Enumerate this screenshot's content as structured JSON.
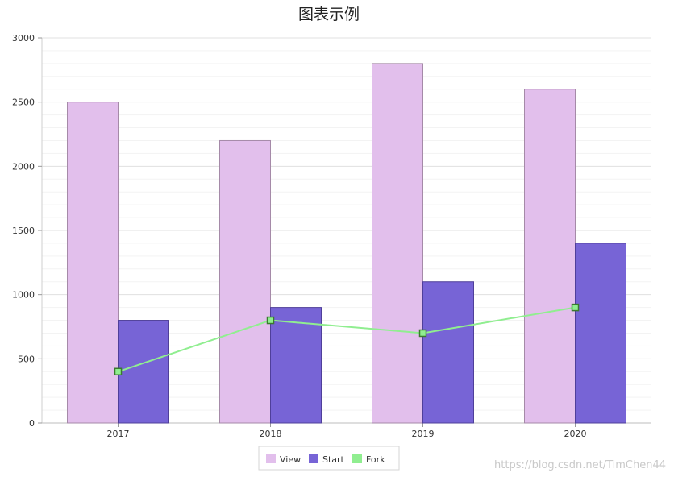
{
  "chart_data": {
    "type": "bar",
    "title": "图表示例",
    "categories": [
      "2017",
      "2018",
      "2019",
      "2020"
    ],
    "ylim": [
      0,
      3000
    ],
    "yticks": [
      0,
      500,
      1000,
      1500,
      2000,
      2500,
      3000
    ],
    "grid": true,
    "legend_position": "bottom",
    "series": [
      {
        "name": "View",
        "kind": "bar",
        "color": "#e2bfec",
        "stroke": "#a58aa8",
        "values": [
          2500,
          2200,
          2800,
          2600
        ]
      },
      {
        "name": "Start",
        "kind": "bar",
        "color": "#7764d6",
        "stroke": "#4f3f9a",
        "values": [
          800,
          900,
          1100,
          1400
        ]
      },
      {
        "name": "Fork",
        "kind": "line",
        "color": "#90ee90",
        "stroke": "#3a7a2e",
        "values": [
          400,
          800,
          700,
          900
        ]
      }
    ]
  },
  "watermark": "https://blog.csdn.net/TimChen44"
}
